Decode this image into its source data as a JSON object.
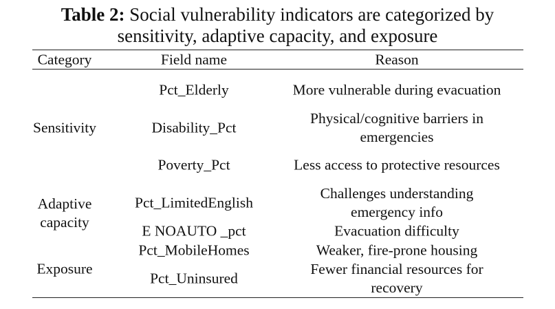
{
  "table": {
    "caption_label": "Table 2:",
    "caption": "Social vulnerability indicators are categorized by sensitivity, adaptive capacity, and exposure",
    "columns": [
      "Category",
      "Field name",
      "Reason"
    ],
    "groups": [
      {
        "category": "Sensitivity",
        "rows": [
          {
            "field": "Pct_Elderly",
            "reason": "More vulnerable during evacuation"
          },
          {
            "field": "Disability_Pct",
            "reason": "Physical/cognitive barriers in emergencies"
          },
          {
            "field": "Poverty_Pct",
            "reason": "Less access to protective resources"
          }
        ]
      },
      {
        "category": "Adaptive capacity",
        "rows": [
          {
            "field": "Pct_LimitedEnglish",
            "reason": "Challenges understanding emergency info"
          },
          {
            "field": "E NOAUTO _pct",
            "reason": "Evacuation difficulty"
          }
        ]
      },
      {
        "category": "Exposure",
        "rows": [
          {
            "field": "Pct_MobileHomes",
            "reason": "Weaker, fire-prone housing"
          },
          {
            "field": "Pct_Uninsured",
            "reason": "Fewer financial resources for recovery"
          }
        ]
      }
    ]
  }
}
